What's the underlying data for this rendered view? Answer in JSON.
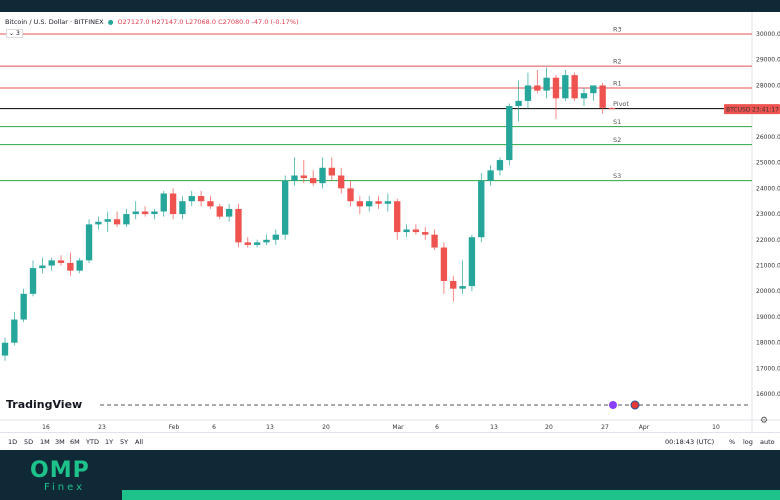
{
  "header": {
    "symbol_title": "Bitcoin / U.S. Dollar · BITFINEX",
    "open": "O27127.0",
    "high": "H27147.0",
    "low": "L27068.0",
    "close": "C27080.0",
    "change": "-47.0 (-0.17%)",
    "collapse_label": "3"
  },
  "watermark": "TradingView",
  "price_label": {
    "symbol": "BTCUSD",
    "time": "23:41:17"
  },
  "toolbar": {
    "ranges": [
      "1D",
      "5D",
      "1M",
      "3M",
      "6M",
      "YTD",
      "1Y",
      "5Y",
      "All"
    ],
    "clock": "00:18:43 (UTC)",
    "percent": "%",
    "log": "log",
    "auto": "auto"
  },
  "brand": {
    "name": "OMP",
    "sub": "Finex"
  },
  "colors": {
    "up": "#26a69a",
    "down": "#ef5350",
    "resistance": "#e05252",
    "support": "#27a745",
    "pivot": "#000000",
    "accent": "#1ec28b",
    "dark": "#0f2a36"
  },
  "chart_data": {
    "type": "candlestick",
    "title": "Bitcoin / U.S. Dollar · BITFINEX",
    "ylim": [
      15500,
      30700
    ],
    "y_ticks": [
      16000,
      17000,
      18000,
      19000,
      20000,
      21000,
      22000,
      23000,
      24000,
      25000,
      26000,
      27000,
      28000,
      29000,
      30000
    ],
    "x_ticks": [
      "16",
      "23",
      "Feb",
      "6",
      "13",
      "20",
      "Mar",
      "6",
      "13",
      "20",
      "27",
      "Apr",
      "10"
    ],
    "levels": [
      {
        "name": "R3",
        "value": 30000
      },
      {
        "name": "R2",
        "value": 28750
      },
      {
        "name": "R1",
        "value": 27900
      },
      {
        "name": "Pivot",
        "value": 27100
      },
      {
        "name": "S1",
        "value": 26400
      },
      {
        "name": "S2",
        "value": 25700
      },
      {
        "name": "S3",
        "value": 24300
      }
    ],
    "current_price": 27080,
    "candles": [
      {
        "o": 17500,
        "h": 18200,
        "l": 17300,
        "c": 18000
      },
      {
        "o": 18000,
        "h": 19200,
        "l": 17900,
        "c": 18900
      },
      {
        "o": 18900,
        "h": 20100,
        "l": 18800,
        "c": 19900
      },
      {
        "o": 19900,
        "h": 21200,
        "l": 19800,
        "c": 20900
      },
      {
        "o": 20900,
        "h": 21300,
        "l": 20700,
        "c": 21000
      },
      {
        "o": 21000,
        "h": 21300,
        "l": 20800,
        "c": 21200
      },
      {
        "o": 21200,
        "h": 21400,
        "l": 21000,
        "c": 21100
      },
      {
        "o": 21100,
        "h": 21500,
        "l": 20600,
        "c": 20800
      },
      {
        "o": 20800,
        "h": 21300,
        "l": 20700,
        "c": 21200
      },
      {
        "o": 21200,
        "h": 22800,
        "l": 21100,
        "c": 22600
      },
      {
        "o": 22600,
        "h": 22900,
        "l": 22400,
        "c": 22700
      },
      {
        "o": 22700,
        "h": 23100,
        "l": 22300,
        "c": 22800
      },
      {
        "o": 22800,
        "h": 23100,
        "l": 22500,
        "c": 22600
      },
      {
        "o": 22600,
        "h": 23200,
        "l": 22500,
        "c": 23000
      },
      {
        "o": 23000,
        "h": 23500,
        "l": 22800,
        "c": 23100
      },
      {
        "o": 23100,
        "h": 23300,
        "l": 22900,
        "c": 23000
      },
      {
        "o": 23000,
        "h": 23200,
        "l": 22800,
        "c": 23100
      },
      {
        "o": 23100,
        "h": 23900,
        "l": 22900,
        "c": 23800
      },
      {
        "o": 23800,
        "h": 24000,
        "l": 22800,
        "c": 23000
      },
      {
        "o": 23000,
        "h": 23700,
        "l": 22800,
        "c": 23500
      },
      {
        "o": 23500,
        "h": 23900,
        "l": 23300,
        "c": 23700
      },
      {
        "o": 23700,
        "h": 23900,
        "l": 23300,
        "c": 23500
      },
      {
        "o": 23500,
        "h": 23700,
        "l": 23200,
        "c": 23300
      },
      {
        "o": 23300,
        "h": 23400,
        "l": 22800,
        "c": 22900
      },
      {
        "o": 22900,
        "h": 23400,
        "l": 22700,
        "c": 23200
      },
      {
        "o": 23200,
        "h": 23400,
        "l": 21700,
        "c": 21900
      },
      {
        "o": 21900,
        "h": 22100,
        "l": 21700,
        "c": 21800
      },
      {
        "o": 21800,
        "h": 22000,
        "l": 21700,
        "c": 21900
      },
      {
        "o": 21900,
        "h": 22200,
        "l": 21800,
        "c": 22000
      },
      {
        "o": 22000,
        "h": 22400,
        "l": 21800,
        "c": 22200
      },
      {
        "o": 22200,
        "h": 24500,
        "l": 22000,
        "c": 24300
      },
      {
        "o": 24300,
        "h": 25200,
        "l": 24100,
        "c": 24500
      },
      {
        "o": 24500,
        "h": 25100,
        "l": 24200,
        "c": 24400
      },
      {
        "o": 24400,
        "h": 24700,
        "l": 24100,
        "c": 24200
      },
      {
        "o": 24200,
        "h": 25200,
        "l": 24000,
        "c": 24800
      },
      {
        "o": 24800,
        "h": 25200,
        "l": 24300,
        "c": 24500
      },
      {
        "o": 24500,
        "h": 24800,
        "l": 23800,
        "c": 24000
      },
      {
        "o": 24000,
        "h": 24300,
        "l": 23300,
        "c": 23500
      },
      {
        "o": 23500,
        "h": 23700,
        "l": 23000,
        "c": 23300
      },
      {
        "o": 23300,
        "h": 23700,
        "l": 23100,
        "c": 23500
      },
      {
        "o": 23500,
        "h": 23700,
        "l": 23200,
        "c": 23400
      },
      {
        "o": 23400,
        "h": 23800,
        "l": 23100,
        "c": 23500
      },
      {
        "o": 23500,
        "h": 23600,
        "l": 22000,
        "c": 22300
      },
      {
        "o": 22300,
        "h": 22600,
        "l": 22100,
        "c": 22400
      },
      {
        "o": 22400,
        "h": 22600,
        "l": 22200,
        "c": 22300
      },
      {
        "o": 22300,
        "h": 22500,
        "l": 22000,
        "c": 22200
      },
      {
        "o": 22200,
        "h": 22400,
        "l": 21600,
        "c": 21700
      },
      {
        "o": 21700,
        "h": 21900,
        "l": 19900,
        "c": 20400
      },
      {
        "o": 20400,
        "h": 20600,
        "l": 19600,
        "c": 20100
      },
      {
        "o": 20100,
        "h": 21200,
        "l": 19900,
        "c": 20200
      },
      {
        "o": 20200,
        "h": 22200,
        "l": 20000,
        "c": 22100
      },
      {
        "o": 22100,
        "h": 24600,
        "l": 21900,
        "c": 24300
      },
      {
        "o": 24300,
        "h": 24900,
        "l": 24100,
        "c": 24700
      },
      {
        "o": 24700,
        "h": 25200,
        "l": 24500,
        "c": 25100
      },
      {
        "o": 25100,
        "h": 27300,
        "l": 24900,
        "c": 27200
      },
      {
        "o": 27200,
        "h": 28200,
        "l": 26600,
        "c": 27400
      },
      {
        "o": 27400,
        "h": 28500,
        "l": 27100,
        "c": 28000
      },
      {
        "o": 28000,
        "h": 28600,
        "l": 27700,
        "c": 27800
      },
      {
        "o": 27800,
        "h": 28700,
        "l": 27500,
        "c": 28300
      },
      {
        "o": 28300,
        "h": 28400,
        "l": 26700,
        "c": 27500
      },
      {
        "o": 27500,
        "h": 28600,
        "l": 27400,
        "c": 28400
      },
      {
        "o": 28400,
        "h": 28500,
        "l": 27400,
        "c": 27500
      },
      {
        "o": 27500,
        "h": 27900,
        "l": 27200,
        "c": 27700
      },
      {
        "o": 27700,
        "h": 28000,
        "l": 27400,
        "c": 28000
      },
      {
        "o": 28000,
        "h": 28100,
        "l": 26900,
        "c": 27130
      },
      {
        "o": 27127,
        "h": 27147,
        "l": 27068,
        "c": 27080
      }
    ]
  }
}
